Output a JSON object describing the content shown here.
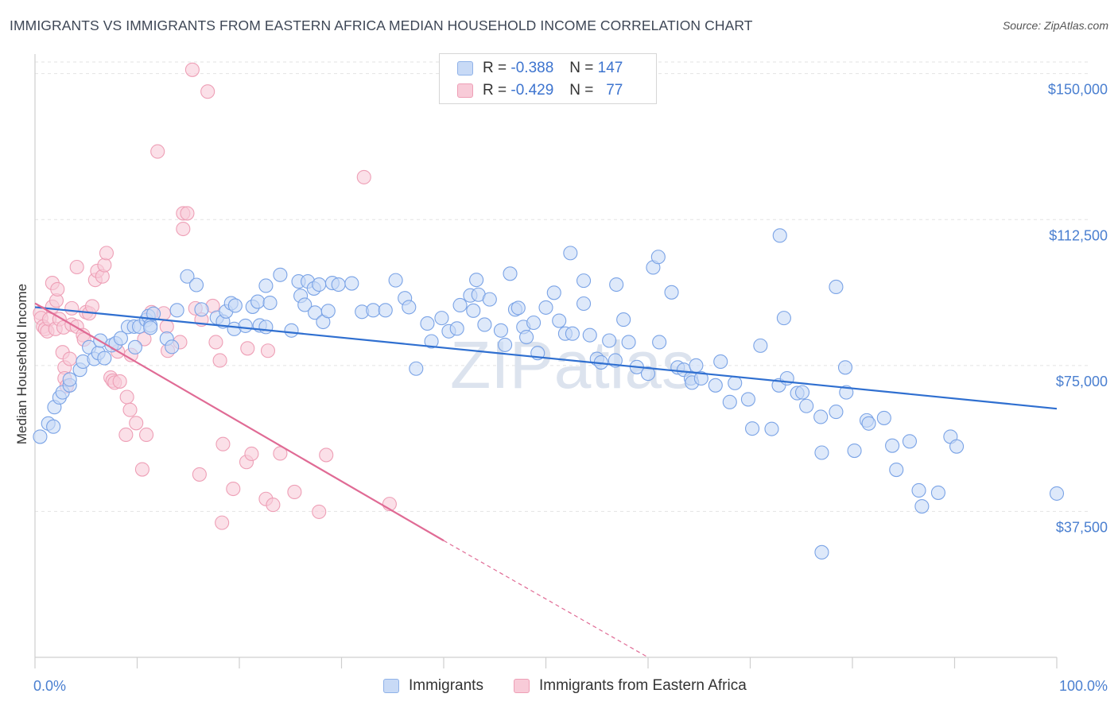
{
  "title": "IMMIGRANTS VS IMMIGRANTS FROM EASTERN AFRICA MEDIAN HOUSEHOLD INCOME CORRELATION CHART",
  "source": "Source: ZipAtlas.com",
  "watermark": "ZIPatlas",
  "legend_top": {
    "rows": [
      {
        "r_label": "R =",
        "r_value": "-0.388",
        "n_label": "N =",
        "n_value": "147"
      },
      {
        "r_label": "R =",
        "r_value": "-0.429",
        "n_label": "N =",
        "n_value": "77"
      }
    ]
  },
  "legend_bottom": [
    "Immigrants",
    "Immigrants from Eastern Africa"
  ],
  "colors": {
    "blue_fill": "#c8daf6",
    "blue_stroke": "#7aa3e6",
    "blue_line": "#2f6fd0",
    "pink_fill": "#f8cbd8",
    "pink_stroke": "#ee9fb6",
    "pink_line": "#e06b95",
    "tick_text": "#4a7fd0",
    "grid": "#e3e3e3"
  },
  "chart_data": {
    "type": "scatter",
    "title": "IMMIGRANTS VS IMMIGRANTS FROM EASTERN AFRICA MEDIAN HOUSEHOLD INCOME CORRELATION CHART",
    "xlabel": "",
    "ylabel": "Median Household Income",
    "xlim": [
      0,
      100
    ],
    "ylim": [
      0,
      153000
    ],
    "x_tick_labels": [
      "0.0%",
      "100.0%"
    ],
    "y_ticks": [
      37500,
      75000,
      112500,
      150000
    ],
    "y_tick_labels": [
      "$37,500",
      "$75,000",
      "$112,500",
      "$150,000"
    ],
    "grid": true,
    "legend_position": "bottom",
    "series": [
      {
        "name": "Immigrants",
        "r": -0.388,
        "n": 147,
        "trend": {
          "x": [
            0,
            100
          ],
          "y": [
            90000,
            63900
          ]
        },
        "points": [
          [
            0.5,
            56700
          ],
          [
            1.3,
            60100
          ],
          [
            1.8,
            59300
          ],
          [
            1.9,
            64300
          ],
          [
            2.4,
            66800
          ],
          [
            2.7,
            68100
          ],
          [
            3.4,
            69900
          ],
          [
            3.4,
            71400
          ],
          [
            4.4,
            73900
          ],
          [
            4.7,
            76000
          ],
          [
            5.3,
            79700
          ],
          [
            5.8,
            76700
          ],
          [
            6.2,
            78200
          ],
          [
            6.4,
            81400
          ],
          [
            6.8,
            76900
          ],
          [
            7.5,
            80200
          ],
          [
            7.9,
            80700
          ],
          [
            8.4,
            82000
          ],
          [
            9.1,
            84900
          ],
          [
            9.7,
            85000
          ],
          [
            9.8,
            79700
          ],
          [
            10.2,
            85000
          ],
          [
            10.9,
            86700
          ],
          [
            11.1,
            87700
          ],
          [
            11.3,
            85300
          ],
          [
            11.3,
            84700
          ],
          [
            11.6,
            88300
          ],
          [
            12.9,
            81900
          ],
          [
            13.4,
            79800
          ],
          [
            13.9,
            89200
          ],
          [
            14.9,
            97900
          ],
          [
            15.8,
            95700
          ],
          [
            16.3,
            89400
          ],
          [
            17.8,
            87300
          ],
          [
            18.4,
            86300
          ],
          [
            18.7,
            88900
          ],
          [
            19.2,
            91000
          ],
          [
            19.5,
            84400
          ],
          [
            19.6,
            90400
          ],
          [
            20.6,
            85200
          ],
          [
            21.3,
            90100
          ],
          [
            21.8,
            91400
          ],
          [
            22.0,
            85300
          ],
          [
            22.6,
            95500
          ],
          [
            22.6,
            84900
          ],
          [
            23.0,
            91100
          ],
          [
            24.0,
            98300
          ],
          [
            25.1,
            84000
          ],
          [
            25.8,
            96600
          ],
          [
            26.0,
            92900
          ],
          [
            26.4,
            90600
          ],
          [
            26.7,
            96600
          ],
          [
            27.3,
            94800
          ],
          [
            27.4,
            88600
          ],
          [
            27.8,
            95800
          ],
          [
            28.2,
            86200
          ],
          [
            28.7,
            89000
          ],
          [
            29.1,
            96200
          ],
          [
            29.7,
            95800
          ],
          [
            31.0,
            96100
          ],
          [
            32.0,
            88800
          ],
          [
            33.1,
            89200
          ],
          [
            34.3,
            89200
          ],
          [
            35.3,
            96900
          ],
          [
            36.2,
            92300
          ],
          [
            36.6,
            90000
          ],
          [
            37.3,
            74200
          ],
          [
            38.4,
            85800
          ],
          [
            38.8,
            81200
          ],
          [
            39.8,
            87200
          ],
          [
            40.5,
            83800
          ],
          [
            41.3,
            84500
          ],
          [
            41.6,
            90500
          ],
          [
            42.6,
            93000
          ],
          [
            42.9,
            89100
          ],
          [
            43.2,
            97000
          ],
          [
            43.4,
            93200
          ],
          [
            44.0,
            85500
          ],
          [
            44.5,
            92000
          ],
          [
            45.6,
            84000
          ],
          [
            46.0,
            80300
          ],
          [
            46.5,
            98600
          ],
          [
            47.0,
            89400
          ],
          [
            47.3,
            89800
          ],
          [
            47.8,
            84900
          ],
          [
            48.1,
            82300
          ],
          [
            48.8,
            86000
          ],
          [
            49.2,
            78200
          ],
          [
            50.0,
            89900
          ],
          [
            50.8,
            93700
          ],
          [
            51.3,
            86500
          ],
          [
            51.9,
            83200
          ],
          [
            52.4,
            103900
          ],
          [
            52.6,
            83200
          ],
          [
            53.7,
            96800
          ],
          [
            53.7,
            90900
          ],
          [
            54.3,
            82800
          ],
          [
            55.0,
            76700
          ],
          [
            55.4,
            75800
          ],
          [
            56.2,
            81400
          ],
          [
            56.8,
            76300
          ],
          [
            56.9,
            95800
          ],
          [
            57.6,
            86800
          ],
          [
            58.1,
            81000
          ],
          [
            58.9,
            74600
          ],
          [
            60.0,
            72900
          ],
          [
            60.5,
            100200
          ],
          [
            61.0,
            102900
          ],
          [
            61.1,
            81000
          ],
          [
            62.3,
            93800
          ],
          [
            62.9,
            74500
          ],
          [
            63.5,
            73900
          ],
          [
            64.2,
            71700
          ],
          [
            64.3,
            70600
          ],
          [
            64.7,
            75000
          ],
          [
            65.2,
            71700
          ],
          [
            66.6,
            69900
          ],
          [
            67.1,
            76000
          ],
          [
            68.0,
            65600
          ],
          [
            68.5,
            70500
          ],
          [
            69.8,
            66300
          ],
          [
            70.2,
            58800
          ],
          [
            71.0,
            80100
          ],
          [
            72.1,
            58700
          ],
          [
            72.8,
            69900
          ],
          [
            72.9,
            108400
          ],
          [
            73.3,
            87200
          ],
          [
            73.6,
            71700
          ],
          [
            74.6,
            67900
          ],
          [
            75.1,
            68100
          ],
          [
            75.5,
            64600
          ],
          [
            76.9,
            61800
          ],
          [
            77.0,
            52600
          ],
          [
            77.0,
            27000
          ],
          [
            78.4,
            95200
          ],
          [
            78.4,
            63100
          ],
          [
            79.3,
            74500
          ],
          [
            79.4,
            68100
          ],
          [
            80.2,
            53100
          ],
          [
            81.4,
            60900
          ],
          [
            81.6,
            60100
          ],
          [
            83.1,
            61500
          ],
          [
            83.9,
            54400
          ],
          [
            84.3,
            48200
          ],
          [
            85.6,
            55500
          ],
          [
            86.5,
            42900
          ],
          [
            86.8,
            38800
          ],
          [
            88.4,
            42300
          ],
          [
            89.6,
            56700
          ],
          [
            90.2,
            54200
          ],
          [
            100.0,
            42100
          ]
        ]
      },
      {
        "name": "Immigrants from Eastern Africa",
        "r": -0.429,
        "n": 77,
        "trend": {
          "x": [
            0,
            40
          ],
          "y": [
            91000,
            30000
          ],
          "dashed_to": {
            "x": 60,
            "y": 0
          }
        },
        "points": [
          [
            0.5,
            88500
          ],
          [
            0.6,
            87200
          ],
          [
            0.8,
            85000
          ],
          [
            1.0,
            84400
          ],
          [
            1.2,
            83800
          ],
          [
            1.4,
            86900
          ],
          [
            1.7,
            90100
          ],
          [
            1.7,
            96200
          ],
          [
            2.0,
            84400
          ],
          [
            2.1,
            91700
          ],
          [
            2.2,
            94600
          ],
          [
            2.4,
            86900
          ],
          [
            2.7,
            78400
          ],
          [
            2.8,
            84800
          ],
          [
            2.9,
            74500
          ],
          [
            2.9,
            71700
          ],
          [
            3.1,
            69700
          ],
          [
            3.4,
            76700
          ],
          [
            3.6,
            89700
          ],
          [
            3.6,
            85500
          ],
          [
            4.1,
            100300
          ],
          [
            4.1,
            85000
          ],
          [
            4.7,
            82800
          ],
          [
            4.8,
            81700
          ],
          [
            5.0,
            88700
          ],
          [
            5.3,
            88400
          ],
          [
            5.6,
            90200
          ],
          [
            5.9,
            97000
          ],
          [
            6.1,
            99300
          ],
          [
            6.6,
            97900
          ],
          [
            6.8,
            100800
          ],
          [
            7.0,
            103900
          ],
          [
            7.4,
            71900
          ],
          [
            7.6,
            71100
          ],
          [
            7.8,
            70600
          ],
          [
            8.1,
            78600
          ],
          [
            8.3,
            70900
          ],
          [
            8.9,
            57200
          ],
          [
            9.0,
            66900
          ],
          [
            9.3,
            63600
          ],
          [
            9.4,
            77700
          ],
          [
            9.9,
            60200
          ],
          [
            10.5,
            48300
          ],
          [
            10.7,
            81800
          ],
          [
            10.9,
            57200
          ],
          [
            11.4,
            88700
          ],
          [
            12.0,
            130000
          ],
          [
            12.6,
            88400
          ],
          [
            12.9,
            85000
          ],
          [
            13.0,
            78800
          ],
          [
            14.2,
            81000
          ],
          [
            14.5,
            110100
          ],
          [
            14.5,
            114100
          ],
          [
            14.9,
            114100
          ],
          [
            15.4,
            151000
          ],
          [
            15.7,
            89700
          ],
          [
            16.1,
            47000
          ],
          [
            16.3,
            86800
          ],
          [
            16.9,
            145400
          ],
          [
            17.4,
            90300
          ],
          [
            17.7,
            81000
          ],
          [
            18.1,
            76300
          ],
          [
            18.3,
            34600
          ],
          [
            18.4,
            54800
          ],
          [
            19.4,
            43300
          ],
          [
            20.7,
            50200
          ],
          [
            20.8,
            79400
          ],
          [
            21.2,
            52300
          ],
          [
            22.6,
            40700
          ],
          [
            22.8,
            78800
          ],
          [
            23.3,
            39200
          ],
          [
            24.0,
            52400
          ],
          [
            25.4,
            42500
          ],
          [
            27.8,
            37400
          ],
          [
            28.5,
            52000
          ],
          [
            32.2,
            123400
          ],
          [
            34.7,
            39400
          ]
        ]
      }
    ]
  }
}
